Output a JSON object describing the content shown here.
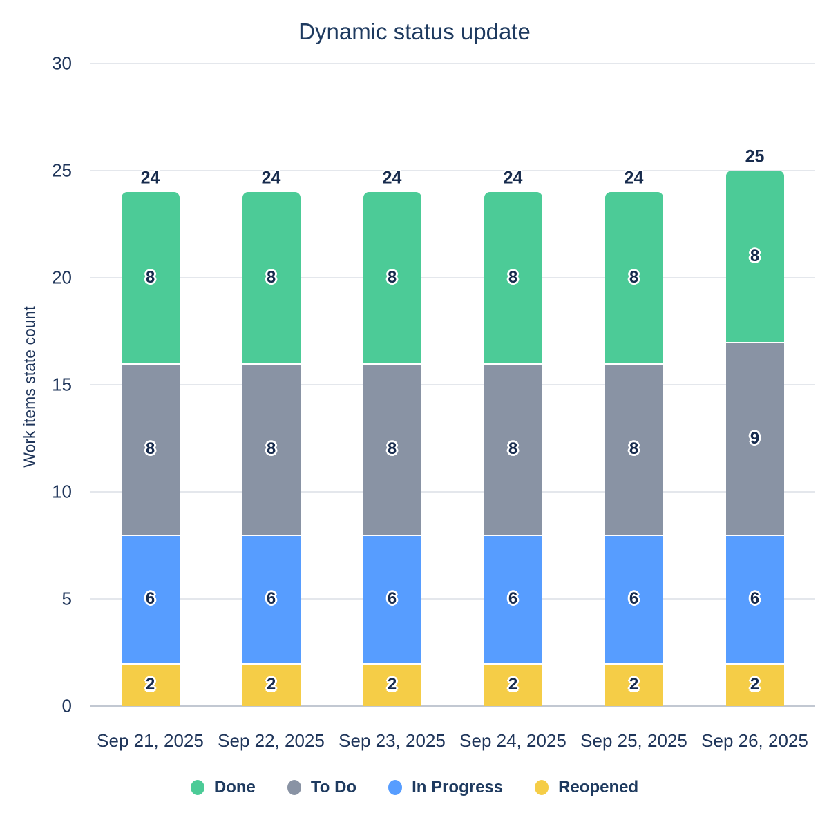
{
  "title": "Dynamic status update",
  "y_axis_title": "Work items state count",
  "text_colors": {
    "title": "#1E3A5F",
    "axis_labels": "#1F355A",
    "value_labels": "#172B4D"
  },
  "chart_data": {
    "type": "bar",
    "stacked": true,
    "title": "Dynamic status update",
    "ylabel": "Work items state count",
    "xlabel": "",
    "categories": [
      "Sep 21, 2025",
      "Sep 22, 2025",
      "Sep 23, 2025",
      "Sep 24, 2025",
      "Sep 25, 2025",
      "Sep 26, 2025"
    ],
    "series": [
      {
        "name": "Done",
        "color": "#4CCB97",
        "values": [
          8,
          8,
          8,
          8,
          8,
          8
        ]
      },
      {
        "name": "To Do",
        "color": "#8993A4",
        "values": [
          8,
          8,
          8,
          8,
          8,
          9
        ]
      },
      {
        "name": "In Progress",
        "color": "#579DFF",
        "values": [
          6,
          6,
          6,
          6,
          6,
          6
        ]
      },
      {
        "name": "Reopened",
        "color": "#F5CD47",
        "values": [
          2,
          2,
          2,
          2,
          2,
          2
        ]
      }
    ],
    "stack_order_bottom_to_top": [
      "Reopened",
      "In Progress",
      "To Do",
      "Done"
    ],
    "totals": [
      24,
      24,
      24,
      24,
      24,
      25
    ],
    "ylim": [
      0,
      30
    ],
    "yticks": [
      0,
      5,
      10,
      15,
      20,
      25,
      30
    ],
    "grid": true,
    "legend_position": "bottom",
    "segment_labels_shown": true,
    "total_labels_shown": true
  }
}
